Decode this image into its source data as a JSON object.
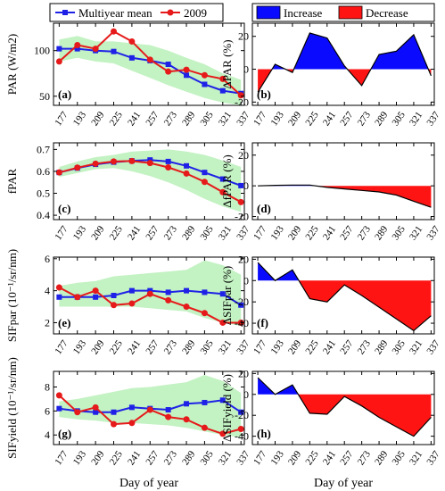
{
  "colors": {
    "mean": "#1f22e6",
    "y2009": "#e61a1a",
    "band": "#c3f2c3",
    "increase": "#0a0aff",
    "decrease": "#ff1414"
  },
  "legend_left": {
    "mean": "Multiyear mean",
    "y2009": "2009"
  },
  "legend_right": {
    "increase": "Increase",
    "decrease": "Decrease"
  },
  "xlabel": "Day of year",
  "chart_data": [
    {
      "id": "a",
      "panel_label": "(a)",
      "type": "line",
      "ylabel": "PAR (W/m2)",
      "ylim": [
        40,
        130
      ],
      "yticks": [
        50,
        100
      ],
      "x": [
        177,
        193,
        209,
        225,
        241,
        257,
        273,
        289,
        305,
        321,
        337
      ],
      "series": [
        {
          "name": "Multiyear mean",
          "values": [
            102,
            102,
            100,
            99,
            92,
            89,
            85,
            73,
            63,
            56,
            53
          ]
        },
        {
          "name": "2009",
          "values": [
            88,
            106,
            102,
            121,
            110,
            90,
            77,
            79,
            73,
            69,
            51
          ]
        }
      ],
      "band_lower": [
        88,
        92,
        88,
        86,
        78,
        70,
        62,
        55,
        48,
        43,
        40
      ],
      "band_upper": [
        112,
        116,
        110,
        110,
        108,
        106,
        100,
        92,
        85,
        75,
        68
      ]
    },
    {
      "id": "b",
      "panel_label": "(b)",
      "type": "area",
      "ylabel": "ΔPAR (%)",
      "ylim": [
        -22,
        28
      ],
      "yticks": [
        -20,
        0,
        20
      ],
      "x": [
        177,
        193,
        209,
        225,
        241,
        257,
        273,
        289,
        305,
        321,
        337
      ],
      "values": [
        -14,
        3,
        -2,
        22,
        19,
        2,
        -10,
        9,
        11,
        21,
        -4
      ]
    },
    {
      "id": "c",
      "panel_label": "(c)",
      "type": "line",
      "ylabel": "fPAR",
      "ylim": [
        0.38,
        0.73
      ],
      "yticks": [
        0.4,
        0.5,
        0.6,
        0.7
      ],
      "x": [
        177,
        193,
        209,
        225,
        241,
        257,
        273,
        289,
        305,
        321,
        337
      ],
      "series": [
        {
          "name": "Multiyear mean",
          "values": [
            0.595,
            0.615,
            0.632,
            0.642,
            0.648,
            0.652,
            0.645,
            0.625,
            0.595,
            0.565,
            0.535
          ]
        },
        {
          "name": "2009",
          "values": [
            0.595,
            0.617,
            0.635,
            0.645,
            0.647,
            0.638,
            0.618,
            0.59,
            0.552,
            0.505,
            0.46
          ]
        }
      ],
      "band_lower": [
        0.575,
        0.592,
        0.61,
        0.615,
        0.6,
        0.578,
        0.55,
        0.515,
        0.475,
        0.44,
        0.415
      ],
      "band_upper": [
        0.62,
        0.645,
        0.665,
        0.675,
        0.69,
        0.695,
        0.7,
        0.69,
        0.675,
        0.65,
        0.62
      ]
    },
    {
      "id": "d",
      "panel_label": "(d)",
      "type": "area",
      "ylabel": "ΔfPAR (%)",
      "ylim": [
        -22,
        28
      ],
      "yticks": [
        -20,
        0,
        20
      ],
      "x": [
        177,
        193,
        209,
        225,
        241,
        257,
        273,
        289,
        305,
        321,
        337
      ],
      "values": [
        0,
        0.3,
        0.5,
        0.5,
        -1,
        -2,
        -3,
        -4,
        -6,
        -10,
        -14
      ]
    },
    {
      "id": "e",
      "panel_label": "(e)",
      "type": "line",
      "ylabel": "SIFpar  (10⁻¹/sr/nm)",
      "ylim": [
        1.3,
        6.1
      ],
      "yticks": [
        2,
        4,
        6
      ],
      "x": [
        177,
        193,
        209,
        225,
        241,
        257,
        273,
        289,
        305,
        321,
        337
      ],
      "series": [
        {
          "name": "Multiyear mean",
          "values": [
            3.6,
            3.6,
            3.6,
            3.7,
            4.0,
            4.0,
            3.9,
            4.0,
            3.9,
            3.8,
            3.1
          ]
        },
        {
          "name": "2009",
          "values": [
            4.2,
            3.6,
            4.0,
            3.1,
            3.2,
            3.8,
            3.4,
            3.0,
            2.6,
            2.0,
            2.0
          ]
        }
      ],
      "band_lower": [
        3.0,
        3.0,
        3.0,
        3.0,
        3.0,
        2.9,
        2.8,
        2.7,
        2.3,
        2.0,
        1.8
      ],
      "band_upper": [
        4.3,
        4.5,
        4.6,
        4.9,
        5.0,
        5.1,
        5.2,
        5.3,
        5.9,
        5.6,
        5.0
      ]
    },
    {
      "id": "f",
      "panel_label": "(f)",
      "type": "area",
      "ylabel": "ΔSIFpar (%)",
      "ylim": [
        -50,
        22
      ],
      "yticks": [
        -40,
        -20,
        0,
        20
      ],
      "x": [
        177,
        193,
        209,
        225,
        241,
        257,
        273,
        289,
        305,
        321,
        337
      ],
      "values": [
        17,
        0,
        10,
        -17,
        -20,
        -4,
        -14,
        -25,
        -36,
        -47,
        -33
      ]
    },
    {
      "id": "g",
      "panel_label": "(g)",
      "type": "line",
      "ylabel": "SIFyield  (10⁻¹/sr/nm)",
      "ylim": [
        3.2,
        9.3
      ],
      "yticks": [
        4,
        6,
        8
      ],
      "x": [
        177,
        193,
        209,
        225,
        241,
        257,
        273,
        289,
        305,
        321,
        337
      ],
      "series": [
        {
          "name": "Multiyear mean",
          "values": [
            6.2,
            6.0,
            5.9,
            5.9,
            6.3,
            6.2,
            6.1,
            6.6,
            6.7,
            6.9,
            5.9
          ]
        },
        {
          "name": "2009",
          "values": [
            7.3,
            5.9,
            6.3,
            4.9,
            5.0,
            6.1,
            5.5,
            5.3,
            4.6,
            4.1,
            4.5
          ]
        }
      ],
      "band_lower": [
        5.5,
        5.3,
        5.2,
        5.0,
        5.0,
        4.9,
        4.8,
        4.6,
        4.3,
        4.0,
        3.8
      ],
      "band_upper": [
        6.8,
        7.0,
        7.3,
        7.6,
        7.9,
        8.0,
        8.2,
        8.4,
        9.0,
        8.5,
        7.5
      ]
    },
    {
      "id": "h",
      "panel_label": "(h)",
      "type": "area",
      "ylabel": "ΔSIFyield (%)",
      "ylim": [
        -48,
        22
      ],
      "yticks": [
        -40,
        -20,
        0,
        20
      ],
      "x": [
        177,
        193,
        209,
        225,
        241,
        257,
        273,
        289,
        305,
        321,
        337
      ],
      "values": [
        16,
        0,
        9,
        -18,
        -19,
        -2,
        -11,
        -22,
        -31,
        -40,
        -22
      ]
    }
  ]
}
